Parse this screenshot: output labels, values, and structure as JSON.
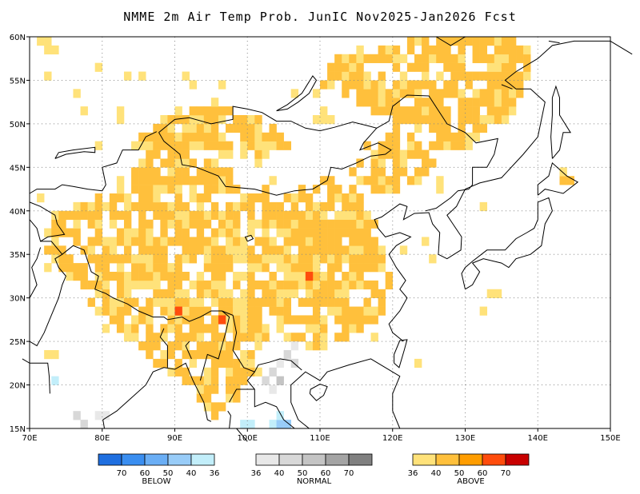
{
  "title": "NMME 2m Air Temp Prob. JunIC  Nov2025-Jan2026 Fcst",
  "map": {
    "lon_range": [
      70,
      150
    ],
    "lat_range": [
      15,
      60
    ],
    "lon_ticks": [
      "70E",
      "80E",
      "90E",
      "100E",
      "110E",
      "120E",
      "130E",
      "140E",
      "150E"
    ],
    "lat_ticks": [
      "15N",
      "20N",
      "25N",
      "30N",
      "35N",
      "40N",
      "45N",
      "50N",
      "55N",
      "60N"
    ],
    "grid": true
  },
  "legend": {
    "below": {
      "title": "BELOW",
      "colors": [
        "#1f6fe0",
        "#3a8ef0",
        "#6aaef5",
        "#98ccf8",
        "#c2eefa"
      ],
      "labels": [
        "70",
        "60",
        "50",
        "40",
        "36"
      ]
    },
    "normal": {
      "title": "NORMAL",
      "colors": [
        "#e8e8e8",
        "#d8d8d8",
        "#c4c4c4",
        "#a4a4a4",
        "#808080"
      ],
      "labels": [
        "36",
        "40",
        "50",
        "60",
        "70"
      ]
    },
    "above": {
      "title": "ABOVE",
      "colors": [
        "#ffe27a",
        "#ffc03c",
        "#ff9d00",
        "#ff4c0c",
        "#c80000"
      ],
      "labels": [
        "36",
        "40",
        "50",
        "60",
        "70"
      ]
    }
  }
}
